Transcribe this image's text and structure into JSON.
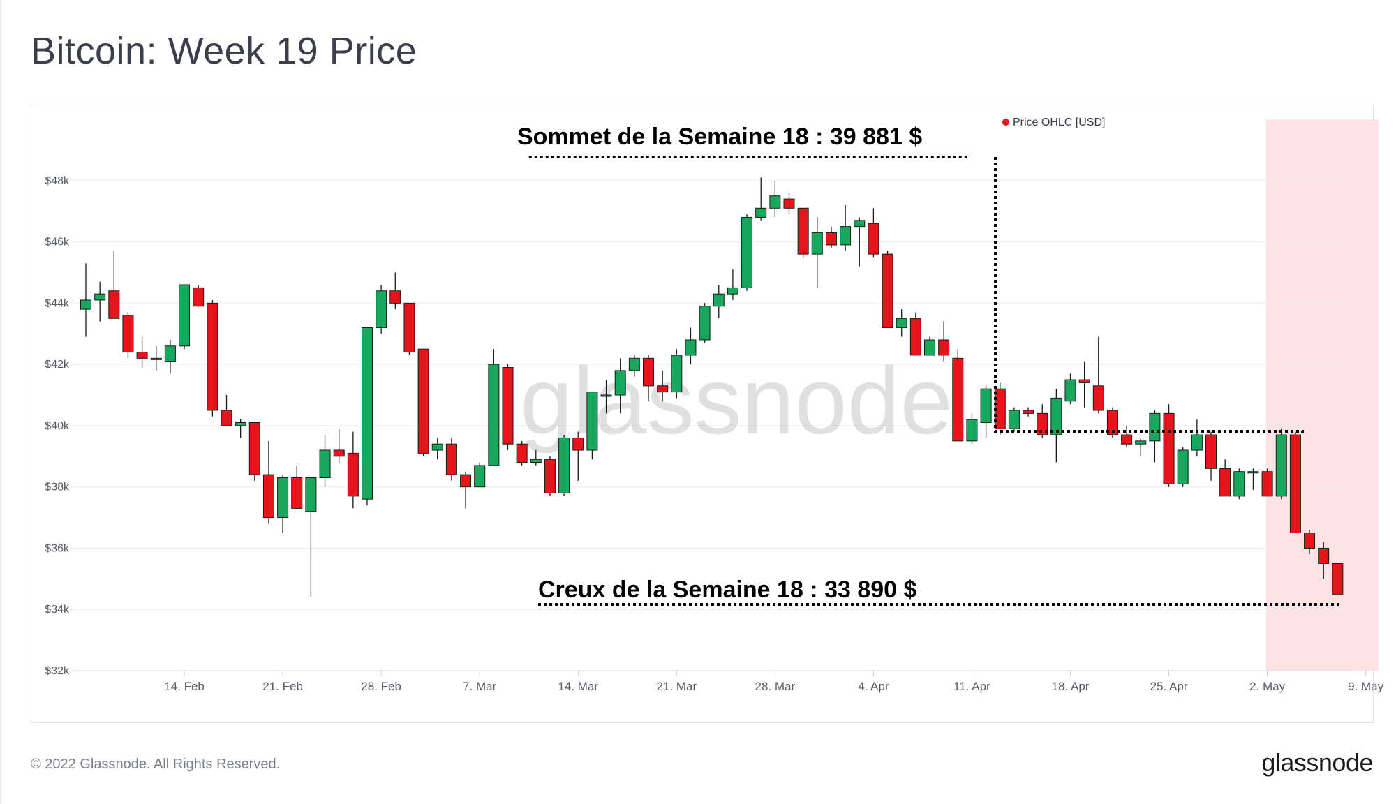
{
  "title": "Bitcoin: Week 19 Price",
  "footer": {
    "copyright": "© 2022 Glassnode. All Rights Reserved.",
    "logo": "glassnode"
  },
  "watermark": "glassnode",
  "colors": {
    "up": "#17a85e",
    "down": "#e8141c",
    "highlight": "#fde3e6",
    "grid": "#eeeeee",
    "legend_dot": "#e8141c"
  },
  "chart_data": {
    "type": "candlestick",
    "legend": "Price OHLC [USD]",
    "legend_position": "top-right",
    "grid": true,
    "y_ticks": [
      "$32k",
      "$34k",
      "$36k",
      "$38k",
      "$40k",
      "$42k",
      "$44k",
      "$46k",
      "$48k"
    ],
    "y_tick_values": [
      32000,
      34000,
      36000,
      38000,
      40000,
      42000,
      44000,
      46000,
      48000
    ],
    "ylim": [
      32000,
      50000
    ],
    "x_ticks": [
      "14. Feb",
      "21. Feb",
      "28. Feb",
      "7. Mar",
      "14. Mar",
      "21. Mar",
      "28. Mar",
      "4. Apr",
      "11. Apr",
      "18. Apr",
      "25. Apr",
      "2. May",
      "9. May"
    ],
    "x_tick_days": [
      7,
      14,
      21,
      28,
      35,
      42,
      49,
      56,
      63,
      70,
      77,
      84,
      91
    ],
    "highlight_range_days": [
      84,
      91.8
    ],
    "annotations": {
      "week18_high": {
        "label": "Sommet de la Semaine 18 : 39 881 $",
        "value": 39881
      },
      "week18_low": {
        "label": "Creux de la Semaine 18 : 33 890 $",
        "value": 33890
      }
    },
    "candles": [
      {
        "day": 0,
        "o": 43800,
        "h": 45300,
        "l": 42900,
        "c": 44100
      },
      {
        "day": 1,
        "o": 44100,
        "h": 44700,
        "l": 43400,
        "c": 44300
      },
      {
        "day": 2,
        "o": 44400,
        "h": 45700,
        "l": 43500,
        "c": 43500
      },
      {
        "day": 3,
        "o": 43600,
        "h": 43700,
        "l": 42200,
        "c": 42400
      },
      {
        "day": 4,
        "o": 42400,
        "h": 42900,
        "l": 41900,
        "c": 42200
      },
      {
        "day": 5,
        "o": 42200,
        "h": 42600,
        "l": 41800,
        "c": 42200
      },
      {
        "day": 6,
        "o": 42100,
        "h": 42800,
        "l": 41700,
        "c": 42600
      },
      {
        "day": 7,
        "o": 42600,
        "h": 44600,
        "l": 42500,
        "c": 44600
      },
      {
        "day": 8,
        "o": 44500,
        "h": 44600,
        "l": 43900,
        "c": 43900
      },
      {
        "day": 9,
        "o": 44000,
        "h": 44100,
        "l": 40300,
        "c": 40500
      },
      {
        "day": 10,
        "o": 40500,
        "h": 41000,
        "l": 40000,
        "c": 40000
      },
      {
        "day": 11,
        "o": 40000,
        "h": 40200,
        "l": 39600,
        "c": 40100
      },
      {
        "day": 12,
        "o": 40100,
        "h": 40100,
        "l": 38200,
        "c": 38400
      },
      {
        "day": 13,
        "o": 38400,
        "h": 39500,
        "l": 36800,
        "c": 37000
      },
      {
        "day": 14,
        "o": 37000,
        "h": 38400,
        "l": 36500,
        "c": 38300
      },
      {
        "day": 15,
        "o": 38300,
        "h": 38700,
        "l": 37300,
        "c": 37300
      },
      {
        "day": 16,
        "o": 37200,
        "h": 38300,
        "l": 34400,
        "c": 38300
      },
      {
        "day": 17,
        "o": 38300,
        "h": 39700,
        "l": 38000,
        "c": 39200
      },
      {
        "day": 18,
        "o": 39200,
        "h": 39900,
        "l": 38800,
        "c": 39000
      },
      {
        "day": 19,
        "o": 39100,
        "h": 39800,
        "l": 37300,
        "c": 37700
      },
      {
        "day": 20,
        "o": 37600,
        "h": 43200,
        "l": 37400,
        "c": 43200
      },
      {
        "day": 21,
        "o": 43200,
        "h": 44600,
        "l": 43000,
        "c": 44400
      },
      {
        "day": 22,
        "o": 44400,
        "h": 45000,
        "l": 43800,
        "c": 44000
      },
      {
        "day": 23,
        "o": 44000,
        "h": 44000,
        "l": 42300,
        "c": 42400
      },
      {
        "day": 24,
        "o": 42500,
        "h": 42500,
        "l": 39000,
        "c": 39100
      },
      {
        "day": 25,
        "o": 39200,
        "h": 39600,
        "l": 38900,
        "c": 39400
      },
      {
        "day": 26,
        "o": 39400,
        "h": 39600,
        "l": 38200,
        "c": 38400
      },
      {
        "day": 27,
        "o": 38400,
        "h": 38500,
        "l": 37300,
        "c": 38000
      },
      {
        "day": 28,
        "o": 38000,
        "h": 38800,
        "l": 38000,
        "c": 38700
      },
      {
        "day": 29,
        "o": 38700,
        "h": 42500,
        "l": 38700,
        "c": 42000
      },
      {
        "day": 30,
        "o": 41900,
        "h": 42000,
        "l": 39200,
        "c": 39400
      },
      {
        "day": 31,
        "o": 39400,
        "h": 39500,
        "l": 38700,
        "c": 38800
      },
      {
        "day": 32,
        "o": 38800,
        "h": 39200,
        "l": 38700,
        "c": 38900
      },
      {
        "day": 33,
        "o": 38900,
        "h": 39000,
        "l": 37700,
        "c": 37800
      },
      {
        "day": 34,
        "o": 37800,
        "h": 39700,
        "l": 37700,
        "c": 39600
      },
      {
        "day": 35,
        "o": 39600,
        "h": 39800,
        "l": 38200,
        "c": 39200
      },
      {
        "day": 36,
        "o": 39200,
        "h": 41100,
        "l": 38900,
        "c": 41100
      },
      {
        "day": 37,
        "o": 41000,
        "h": 41500,
        "l": 40400,
        "c": 41000
      },
      {
        "day": 38,
        "o": 41000,
        "h": 42200,
        "l": 40400,
        "c": 41800
      },
      {
        "day": 39,
        "o": 41800,
        "h": 42300,
        "l": 41600,
        "c": 42200
      },
      {
        "day": 40,
        "o": 42200,
        "h": 42300,
        "l": 40800,
        "c": 41300
      },
      {
        "day": 41,
        "o": 41300,
        "h": 41800,
        "l": 40800,
        "c": 41100
      },
      {
        "day": 42,
        "o": 41100,
        "h": 42500,
        "l": 40900,
        "c": 42300
      },
      {
        "day": 43,
        "o": 42300,
        "h": 43200,
        "l": 42000,
        "c": 42800
      },
      {
        "day": 44,
        "o": 42800,
        "h": 44000,
        "l": 42700,
        "c": 43900
      },
      {
        "day": 45,
        "o": 43900,
        "h": 44600,
        "l": 43500,
        "c": 44300
      },
      {
        "day": 46,
        "o": 44300,
        "h": 45100,
        "l": 44100,
        "c": 44500
      },
      {
        "day": 47,
        "o": 44500,
        "h": 46900,
        "l": 44400,
        "c": 46800
      },
      {
        "day": 48,
        "o": 46800,
        "h": 48100,
        "l": 46700,
        "c": 47100
      },
      {
        "day": 49,
        "o": 47100,
        "h": 48000,
        "l": 46800,
        "c": 47500
      },
      {
        "day": 50,
        "o": 47400,
        "h": 47600,
        "l": 46900,
        "c": 47100
      },
      {
        "day": 51,
        "o": 47100,
        "h": 47100,
        "l": 45500,
        "c": 45600
      },
      {
        "day": 52,
        "o": 45600,
        "h": 46800,
        "l": 44500,
        "c": 46300
      },
      {
        "day": 53,
        "o": 46300,
        "h": 46500,
        "l": 45800,
        "c": 45900
      },
      {
        "day": 54,
        "o": 45900,
        "h": 47200,
        "l": 45700,
        "c": 46500
      },
      {
        "day": 55,
        "o": 46500,
        "h": 46800,
        "l": 45200,
        "c": 46700
      },
      {
        "day": 56,
        "o": 46600,
        "h": 47100,
        "l": 45500,
        "c": 45600
      },
      {
        "day": 57,
        "o": 45600,
        "h": 45700,
        "l": 43200,
        "c": 43200
      },
      {
        "day": 58,
        "o": 43200,
        "h": 43800,
        "l": 42900,
        "c": 43500
      },
      {
        "day": 59,
        "o": 43500,
        "h": 43700,
        "l": 42300,
        "c": 42300
      },
      {
        "day": 60,
        "o": 42300,
        "h": 42900,
        "l": 42300,
        "c": 42800
      },
      {
        "day": 61,
        "o": 42800,
        "h": 43400,
        "l": 42100,
        "c": 42300
      },
      {
        "day": 62,
        "o": 42200,
        "h": 42500,
        "l": 39500,
        "c": 39500
      },
      {
        "day": 63,
        "o": 39500,
        "h": 40400,
        "l": 39400,
        "c": 40200
      },
      {
        "day": 64,
        "o": 40100,
        "h": 41300,
        "l": 39600,
        "c": 41200
      },
      {
        "day": 65,
        "o": 41200,
        "h": 41400,
        "l": 39700,
        "c": 39900
      },
      {
        "day": 66,
        "o": 39900,
        "h": 40600,
        "l": 39800,
        "c": 40500
      },
      {
        "day": 67,
        "o": 40500,
        "h": 40600,
        "l": 40300,
        "c": 40400
      },
      {
        "day": 68,
        "o": 40400,
        "h": 40700,
        "l": 39600,
        "c": 39700
      },
      {
        "day": 69,
        "o": 39700,
        "h": 41200,
        "l": 38800,
        "c": 40900
      },
      {
        "day": 70,
        "o": 40800,
        "h": 41700,
        "l": 40700,
        "c": 41500
      },
      {
        "day": 71,
        "o": 41500,
        "h": 42100,
        "l": 40600,
        "c": 41400
      },
      {
        "day": 72,
        "o": 41300,
        "h": 42900,
        "l": 40400,
        "c": 40500
      },
      {
        "day": 73,
        "o": 40500,
        "h": 40600,
        "l": 39600,
        "c": 39700
      },
      {
        "day": 74,
        "o": 39700,
        "h": 40000,
        "l": 39300,
        "c": 39400
      },
      {
        "day": 75,
        "o": 39400,
        "h": 39600,
        "l": 39000,
        "c": 39500
      },
      {
        "day": 76,
        "o": 39500,
        "h": 40500,
        "l": 38800,
        "c": 40400
      },
      {
        "day": 77,
        "o": 40400,
        "h": 40700,
        "l": 38000,
        "c": 38100
      },
      {
        "day": 78,
        "o": 38100,
        "h": 39300,
        "l": 38000,
        "c": 39200
      },
      {
        "day": 79,
        "o": 39200,
        "h": 40200,
        "l": 39000,
        "c": 39700
      },
      {
        "day": 80,
        "o": 39700,
        "h": 39800,
        "l": 38200,
        "c": 38600
      },
      {
        "day": 81,
        "o": 38600,
        "h": 38900,
        "l": 37700,
        "c": 37700
      },
      {
        "day": 82,
        "o": 37700,
        "h": 38600,
        "l": 37600,
        "c": 38500
      },
      {
        "day": 83,
        "o": 38500,
        "h": 38600,
        "l": 37900,
        "c": 38500
      },
      {
        "day": 84,
        "o": 38500,
        "h": 38600,
        "l": 37700,
        "c": 37700
      },
      {
        "day": 85,
        "o": 37700,
        "h": 39900,
        "l": 37600,
        "c": 39700
      },
      {
        "day": 86,
        "o": 39700,
        "h": 39800,
        "l": 36500,
        "c": 36500
      },
      {
        "day": 87,
        "o": 36500,
        "h": 36600,
        "l": 35800,
        "c": 36000
      },
      {
        "day": 88,
        "o": 36000,
        "h": 36200,
        "l": 35000,
        "c": 35500
      },
      {
        "day": 89,
        "o": 35500,
        "h": 35500,
        "l": 34500,
        "c": 34500
      }
    ]
  }
}
